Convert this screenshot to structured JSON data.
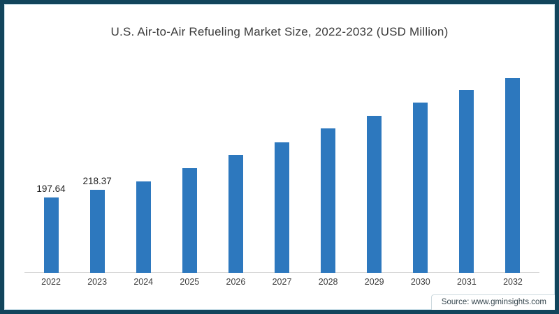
{
  "colors": {
    "frame_border": "#12455c",
    "frame_inner_line": "#cfe3ec",
    "bar": "#2d78be",
    "axis_line": "#d8d8d8",
    "title_text": "#3b3b3b",
    "tick_text": "#3c3c3c",
    "value_label_text": "#1f1f1f",
    "source_text": "#37474f"
  },
  "source": {
    "text": "Source: www.gminsights.com"
  },
  "chart_data": {
    "type": "bar",
    "title": "U.S. Air-to-Air Refueling Market Size, 2022-2032 (USD Million)",
    "xlabel": "",
    "ylabel": "",
    "categories": [
      "2022",
      "2023",
      "2024",
      "2025",
      "2026",
      "2027",
      "2028",
      "2029",
      "2030",
      "2031",
      "2032"
    ],
    "values": [
      197.64,
      218.37,
      239,
      274,
      309,
      343,
      378,
      412,
      447,
      479,
      510
    ],
    "data_labels": [
      "197.64",
      "218.37",
      null,
      null,
      null,
      null,
      null,
      null,
      null,
      null,
      null
    ],
    "ylim": [
      0,
      580
    ],
    "grid": "off",
    "y_axis_visible": false,
    "legend": "none"
  }
}
